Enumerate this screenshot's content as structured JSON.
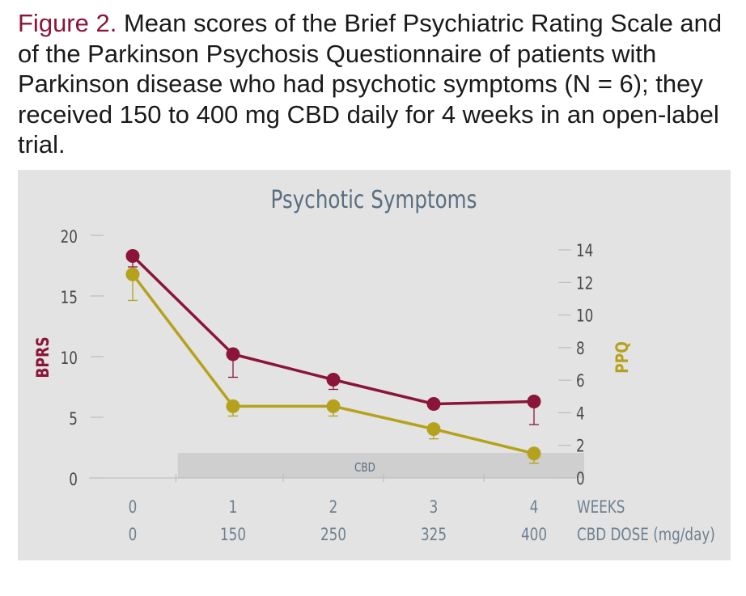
{
  "caption": {
    "label": "Figure 2.",
    "text": "Mean scores of the Brief Psychiatric Rating Scale and of the Parkinson Psychosis Questionnaire of patients with Parkinson disease who had psychotic symptoms (N = 6); they received 150 to 400 mg CBD daily for 4 weeks in an open-label trial."
  },
  "chart_data": {
    "type": "line",
    "title": "Psychotic Symptoms",
    "x": [
      0,
      1,
      2,
      3,
      4
    ],
    "x_tick_labels": [
      "0",
      "1",
      "2",
      "3",
      "4"
    ],
    "x_label": "WEEKS",
    "secondary_x_tick_labels": [
      "0",
      "150",
      "250",
      "325",
      "400"
    ],
    "secondary_x_label": "CBD DOSE (mg/day)",
    "ylabel": "BPRS",
    "ylim": [
      0,
      20
    ],
    "y_ticks": [
      0,
      5,
      10,
      15,
      20
    ],
    "y2label": "PPQ",
    "y2lim": [
      0,
      14
    ],
    "y2_ticks": [
      0,
      2,
      4,
      6,
      8,
      10,
      12,
      14
    ],
    "treatment_band": {
      "label": "CBD",
      "from_week": 0.45,
      "to_week": 4.5
    },
    "series": [
      {
        "name": "BPRS",
        "axis": "left",
        "color": "#8b1538",
        "values": [
          18.3,
          10.2,
          8.1,
          6.1,
          6.3
        ],
        "error_lower": [
          0.9,
          1.9,
          0.8,
          0.4,
          1.9
        ]
      },
      {
        "name": "PPQ",
        "axis": "right",
        "color": "#b5a21c",
        "values": [
          12.5,
          4.4,
          4.4,
          3.0,
          1.5
        ],
        "error_lower": [
          1.6,
          0.6,
          0.6,
          0.6,
          0.6
        ]
      }
    ]
  }
}
